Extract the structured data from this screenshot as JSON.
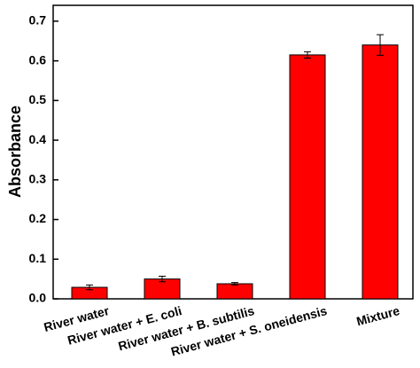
{
  "chart_data": {
    "type": "bar",
    "y_label": "Absorbance",
    "categories": [
      "River water",
      "River water + E. coli",
      "River water + B. subtilis",
      "River water + S. oneidensis",
      "Mixture"
    ],
    "values": [
      0.029,
      0.05,
      0.038,
      0.615,
      0.64
    ],
    "errors": [
      0.006,
      0.007,
      0.003,
      0.008,
      0.026
    ],
    "color": "#ff0000",
    "ylim": [
      0,
      0.74
    ],
    "yticks": [
      {
        "value": 0,
        "label": "0.0"
      },
      0.1,
      0.2,
      0.3,
      0.4,
      0.5,
      0.6,
      0.7
    ]
  }
}
